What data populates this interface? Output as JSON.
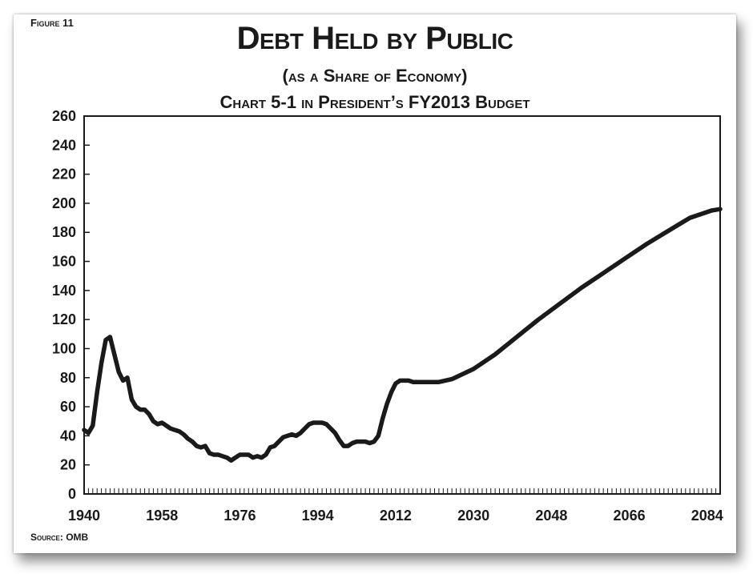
{
  "figure_label": "Figure 11",
  "source": "Source: OMB",
  "chart_data": {
    "type": "line",
    "title": "Debt Held by Public",
    "subtitle": "(as a Share of Economy)",
    "subtitle2": "Chart 5-1 in President’s FY2013 Budget",
    "xlabel": "",
    "ylabel": "",
    "xlim": [
      1940,
      2087
    ],
    "ylim": [
      0,
      260
    ],
    "x_ticks": [
      1940,
      1958,
      1976,
      1994,
      2012,
      2030,
      2048,
      2066,
      2084
    ],
    "y_ticks": [
      0,
      20,
      40,
      60,
      80,
      100,
      120,
      140,
      160,
      180,
      200,
      220,
      240,
      260
    ],
    "grid": false,
    "line_color": "#1a1a1a",
    "series": [
      {
        "name": "",
        "x": [
          1940,
          1941,
          1942,
          1943,
          1944,
          1945,
          1946,
          1947,
          1948,
          1949,
          1950,
          1951,
          1952,
          1953,
          1954,
          1955,
          1956,
          1957,
          1958,
          1959,
          1960,
          1961,
          1962,
          1963,
          1964,
          1965,
          1966,
          1967,
          1968,
          1969,
          1970,
          1971,
          1972,
          1973,
          1974,
          1975,
          1976,
          1977,
          1978,
          1979,
          1980,
          1981,
          1982,
          1983,
          1984,
          1985,
          1986,
          1987,
          1988,
          1989,
          1990,
          1991,
          1992,
          1993,
          1994,
          1995,
          1996,
          1997,
          1998,
          1999,
          2000,
          2001,
          2002,
          2003,
          2004,
          2005,
          2006,
          2007,
          2008,
          2009,
          2010,
          2011,
          2012,
          2013,
          2014,
          2015,
          2016,
          2017,
          2018,
          2019,
          2020,
          2021,
          2022,
          2025,
          2030,
          2035,
          2040,
          2045,
          2050,
          2055,
          2060,
          2065,
          2070,
          2075,
          2080,
          2085,
          2087
        ],
        "values": [
          44,
          42,
          47,
          70,
          90,
          106,
          108,
          96,
          84,
          78,
          80,
          65,
          60,
          58,
          58,
          55,
          50,
          48,
          49,
          47,
          45,
          44,
          43,
          41,
          38,
          36,
          33,
          32,
          33,
          28,
          27,
          27,
          26,
          25,
          23,
          25,
          27,
          27,
          27,
          25,
          26,
          25,
          27,
          32,
          33,
          36,
          39,
          40,
          41,
          40,
          42,
          45,
          48,
          49,
          49,
          49,
          48,
          45,
          42,
          37,
          33,
          33,
          35,
          36,
          36,
          36,
          35,
          36,
          40,
          52,
          62,
          70,
          76,
          78,
          78,
          78,
          77,
          77,
          77,
          77,
          77,
          77,
          77,
          79,
          86,
          96,
          108,
          120,
          131,
          142,
          152,
          162,
          172,
          181,
          190,
          195,
          196
        ]
      }
    ]
  }
}
